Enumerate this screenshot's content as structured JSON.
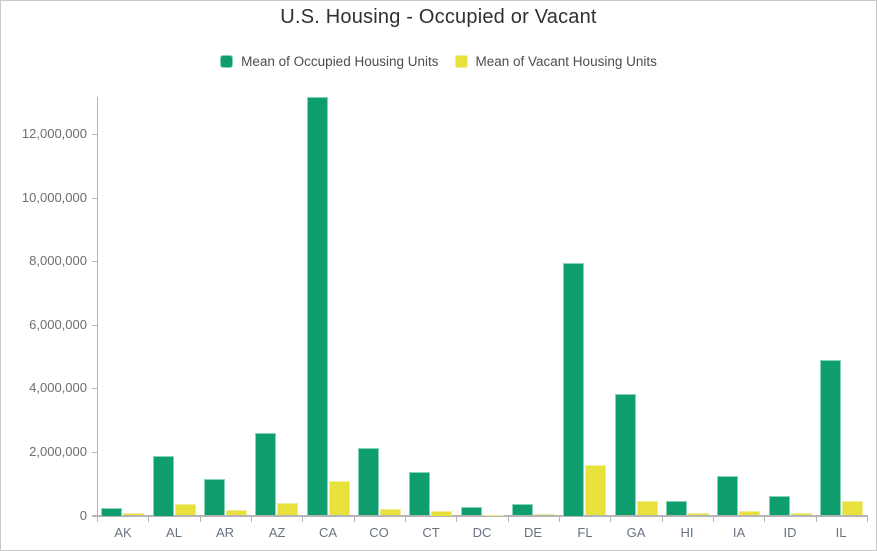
{
  "title": "U.S. Housing - Occupied or Vacant",
  "legend": [
    {
      "label": "Mean of Occupied Housing Units",
      "color": "#0d9d6f",
      "border_color": "#86d4b6"
    },
    {
      "label": "Mean of Vacant Housing Units",
      "color": "#e8e13c",
      "border_color": "#f1eb97"
    }
  ],
  "colors": {
    "axis_line": "#b5b5b5",
    "y_label_text": "#6e6e6e",
    "x_label_text": "#687380",
    "title_text": "#303030",
    "legend_text": "#4d4d4d",
    "frame_border": "#c9c9c9"
  },
  "chart_data": {
    "type": "bar",
    "title": "U.S. Housing - Occupied or Vacant",
    "xlabel": "",
    "ylabel": "",
    "grid": false,
    "legend_position": "top",
    "ylim": [
      0,
      13300000
    ],
    "yticks": [
      0,
      2000000,
      4000000,
      6000000,
      8000000,
      10000000,
      12000000
    ],
    "ytick_labels": [
      "0",
      "2,000,000",
      "4,000,000",
      "6,000,000",
      "8,000,000",
      "10,000,000",
      "12,000,000"
    ],
    "categories": [
      "AK",
      "AL",
      "AR",
      "AZ",
      "CA",
      "CO",
      "CT",
      "DC",
      "DE",
      "FL",
      "GA",
      "HI",
      "IA",
      "ID",
      "IL"
    ],
    "series": [
      {
        "name": "Mean of Occupied Housing Units",
        "color": "#0d9d6f",
        "border_color": "#86d4b6",
        "values": [
          250000,
          1870000,
          1140000,
          2600000,
          13150000,
          2110000,
          1370000,
          270000,
          350000,
          7940000,
          3830000,
          450000,
          1240000,
          620000,
          4880000
        ]
      },
      {
        "name": "Mean of Vacant Housing Units",
        "color": "#e8e13c",
        "border_color": "#f1eb97",
        "values": [
          70000,
          370000,
          180000,
          380000,
          1080000,
          200000,
          140000,
          30000,
          60000,
          1600000,
          460000,
          70000,
          130000,
          90000,
          460000
        ]
      }
    ]
  }
}
